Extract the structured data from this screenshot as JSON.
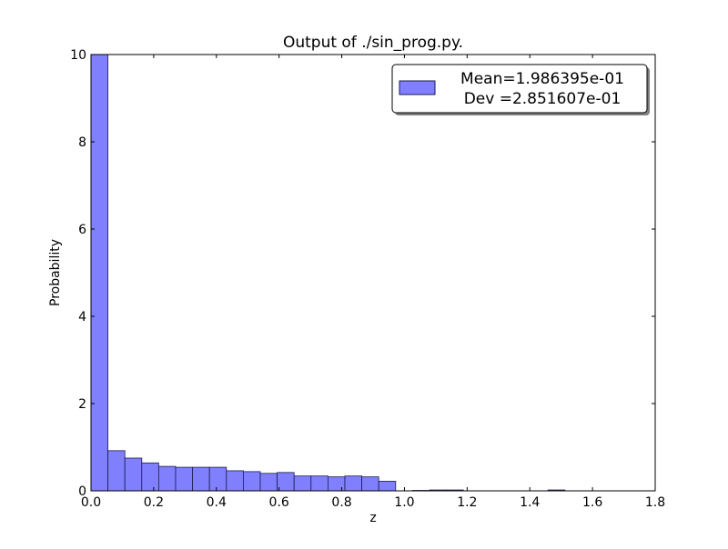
{
  "chart_data": {
    "type": "bar",
    "subtype": "histogram",
    "title": "Output of ./sin_prog.py.",
    "xlabel": "z",
    "ylabel": "Probability",
    "xlim": [
      0.0,
      1.8
    ],
    "ylim": [
      0,
      10
    ],
    "bin_width": 0.054,
    "bin_starts": [
      0.0,
      0.054,
      0.108,
      0.162,
      0.216,
      0.27,
      0.324,
      0.378,
      0.432,
      0.486,
      0.54,
      0.594,
      0.648,
      0.702,
      0.756,
      0.81,
      0.864,
      0.918,
      0.972,
      1.026,
      1.08,
      1.134,
      1.188,
      1.242,
      1.296,
      1.35,
      1.404,
      1.458,
      1.512
    ],
    "values": [
      10.0,
      0.92,
      0.75,
      0.64,
      0.56,
      0.54,
      0.54,
      0.54,
      0.46,
      0.44,
      0.4,
      0.42,
      0.34,
      0.34,
      0.32,
      0.34,
      0.32,
      0.22,
      0.0,
      0.01,
      0.02,
      0.02,
      0.0,
      0.0,
      0.0,
      0.0,
      0.0,
      0.02,
      0.0
    ],
    "x_ticks": [
      "0.0",
      "0.2",
      "0.4",
      "0.6",
      "0.8",
      "1.0",
      "1.2",
      "1.4",
      "1.6",
      "1.8"
    ],
    "y_ticks": [
      "0",
      "2",
      "4",
      "6",
      "8",
      "10"
    ],
    "legend": {
      "position": "top-right",
      "lines": [
        "Mean=1.986395e-01",
        "Dev =2.851607e-01"
      ]
    },
    "grid": false,
    "colors": {
      "bar_fill": "#8080ff",
      "bar_edge": "#1a1a4d",
      "axes": "#000000",
      "background": "#ffffff"
    }
  }
}
